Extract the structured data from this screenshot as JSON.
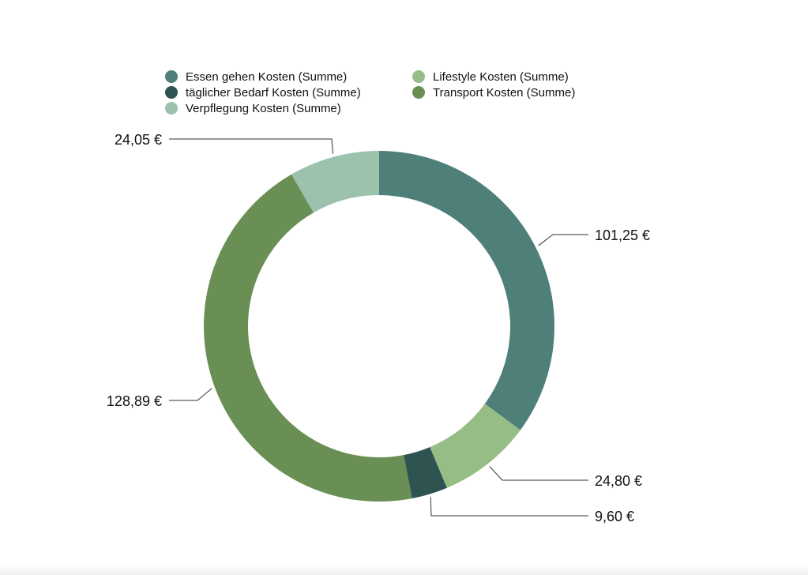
{
  "chart_data": {
    "type": "pie",
    "donut": true,
    "title": "",
    "legend_position": "top",
    "series": [
      {
        "name": "Essen gehen Kosten (Summe)",
        "value": 101.25,
        "label": "101,25 €",
        "color": "#4e8079"
      },
      {
        "name": "Lifestyle Kosten (Summe)",
        "value": 24.8,
        "label": "24,80 €",
        "color": "#97bd86"
      },
      {
        "name": "täglicher Bedarf Kosten (Summe)",
        "value": 9.6,
        "label": "9,60 €",
        "color": "#2e5350"
      },
      {
        "name": "Transport Kosten (Summe)",
        "value": 128.89,
        "label": "128,89 €",
        "color": "#6a8f55"
      },
      {
        "name": "Verpflegung Kosten (Summe)",
        "value": 24.05,
        "label": "24,05 €",
        "color": "#9cc2ad"
      }
    ]
  }
}
